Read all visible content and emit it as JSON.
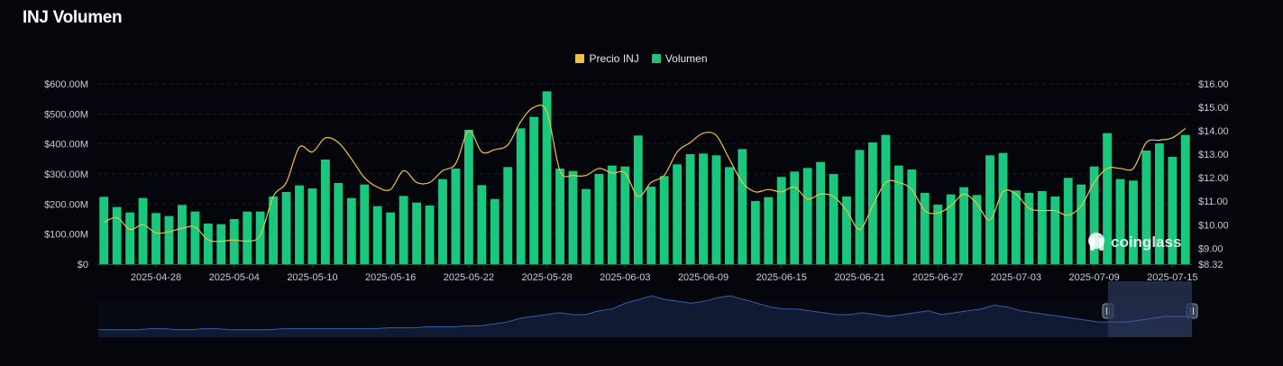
{
  "title": "INJ Volumen",
  "legend": {
    "price_label": "Precio INJ",
    "volume_label": "Volumen"
  },
  "colors": {
    "price": "#f0c041",
    "volume": "#1ac77c",
    "background": "#05060b",
    "grid": "#1b1e27",
    "navigator_fill": "#101a33",
    "navigator_line": "#3a5ba8",
    "navigator_window": "#2a3556"
  },
  "watermark": "coinglass",
  "chart_data": {
    "type": "bar",
    "title": "INJ Volumen",
    "y_left": {
      "ticks": [
        "$0",
        "$100.00M",
        "$200.00M",
        "$300.00M",
        "$400.00M",
        "$500.00M",
        "$600.00M"
      ],
      "range": [
        0,
        600
      ]
    },
    "y_right": {
      "ticks": [
        "$8.32",
        "$9.00",
        "$10.00",
        "$11.00",
        "$12.00",
        "$13.00",
        "$14.00",
        "$15.00",
        "$16.00"
      ],
      "range": [
        8.32,
        16.0
      ]
    },
    "x_tick_labels": [
      "2025-04-28",
      "2025-05-04",
      "2025-05-10",
      "2025-05-16",
      "2025-05-22",
      "2025-05-28",
      "2025-06-03",
      "2025-06-09",
      "2025-06-15",
      "2025-06-21",
      "2025-06-27",
      "2025-07-03",
      "2025-07-09",
      "2025-07-15"
    ],
    "start_date": "2025-04-24",
    "series": [
      {
        "name": "Volumen",
        "unit": "USD millions",
        "values": [
          224,
          190,
          172,
          220,
          170,
          160,
          197,
          175,
          135,
          133,
          150,
          175,
          175,
          225,
          240,
          262,
          252,
          348,
          270,
          220,
          265,
          193,
          172,
          227,
          205,
          195,
          283,
          318,
          447,
          263,
          217,
          323,
          452,
          490,
          575,
          318,
          310,
          250,
          300,
          328,
          325,
          428,
          258,
          293,
          332,
          366,
          368,
          362,
          323,
          383,
          210,
          223,
          290,
          308,
          320,
          340,
          300,
          225,
          380,
          405,
          430,
          328,
          315,
          237,
          198,
          232,
          256,
          230,
          362,
          370,
          245,
          237,
          243,
          225,
          287,
          265,
          325,
          436,
          283,
          278,
          378,
          402,
          357,
          430
        ]
      },
      {
        "name": "Precio INJ",
        "unit": "USD",
        "values": [
          10.1,
          10.3,
          9.8,
          10.0,
          9.65,
          9.7,
          9.85,
          9.9,
          9.35,
          9.3,
          9.35,
          9.3,
          9.55,
          11.2,
          11.8,
          13.3,
          13.1,
          13.7,
          13.5,
          12.8,
          12.0,
          11.6,
          11.5,
          12.3,
          11.8,
          11.8,
          12.3,
          12.6,
          14.0,
          13.1,
          13.2,
          13.4,
          14.4,
          15.0,
          14.8,
          12.3,
          12.1,
          12.1,
          12.4,
          12.2,
          12.2,
          11.2,
          11.8,
          12.1,
          13.1,
          13.5,
          13.9,
          13.8,
          12.8,
          11.8,
          11.4,
          11.5,
          11.4,
          11.6,
          11.1,
          11.3,
          11.2,
          10.6,
          9.8,
          10.8,
          11.8,
          11.8,
          11.5,
          10.6,
          10.5,
          10.8,
          11.3,
          10.9,
          10.2,
          11.4,
          11.3,
          10.7,
          10.6,
          10.6,
          10.4,
          10.8,
          11.8,
          12.4,
          12.4,
          12.4,
          13.5,
          13.6,
          13.7,
          14.1
        ]
      }
    ]
  },
  "navigator": {
    "handle_left": "handle",
    "handle_right": "handle",
    "history": [
      8,
      8,
      8,
      8,
      9,
      9,
      8,
      8,
      9,
      9,
      8,
      8,
      8,
      8,
      9,
      9,
      9,
      9,
      9,
      9,
      9,
      9,
      10,
      10,
      10,
      11,
      11,
      11,
      12,
      12,
      14,
      16,
      20,
      22,
      24,
      26,
      24,
      24,
      28,
      30,
      36,
      40,
      44,
      40,
      38,
      36,
      38,
      42,
      44,
      40,
      36,
      32,
      30,
      30,
      28,
      26,
      24,
      24,
      26,
      24,
      22,
      24,
      26,
      28,
      24,
      26,
      28,
      30,
      34,
      32,
      28,
      26,
      24,
      22,
      20,
      18,
      16,
      16,
      16,
      18,
      20,
      22,
      22,
      22
    ]
  }
}
